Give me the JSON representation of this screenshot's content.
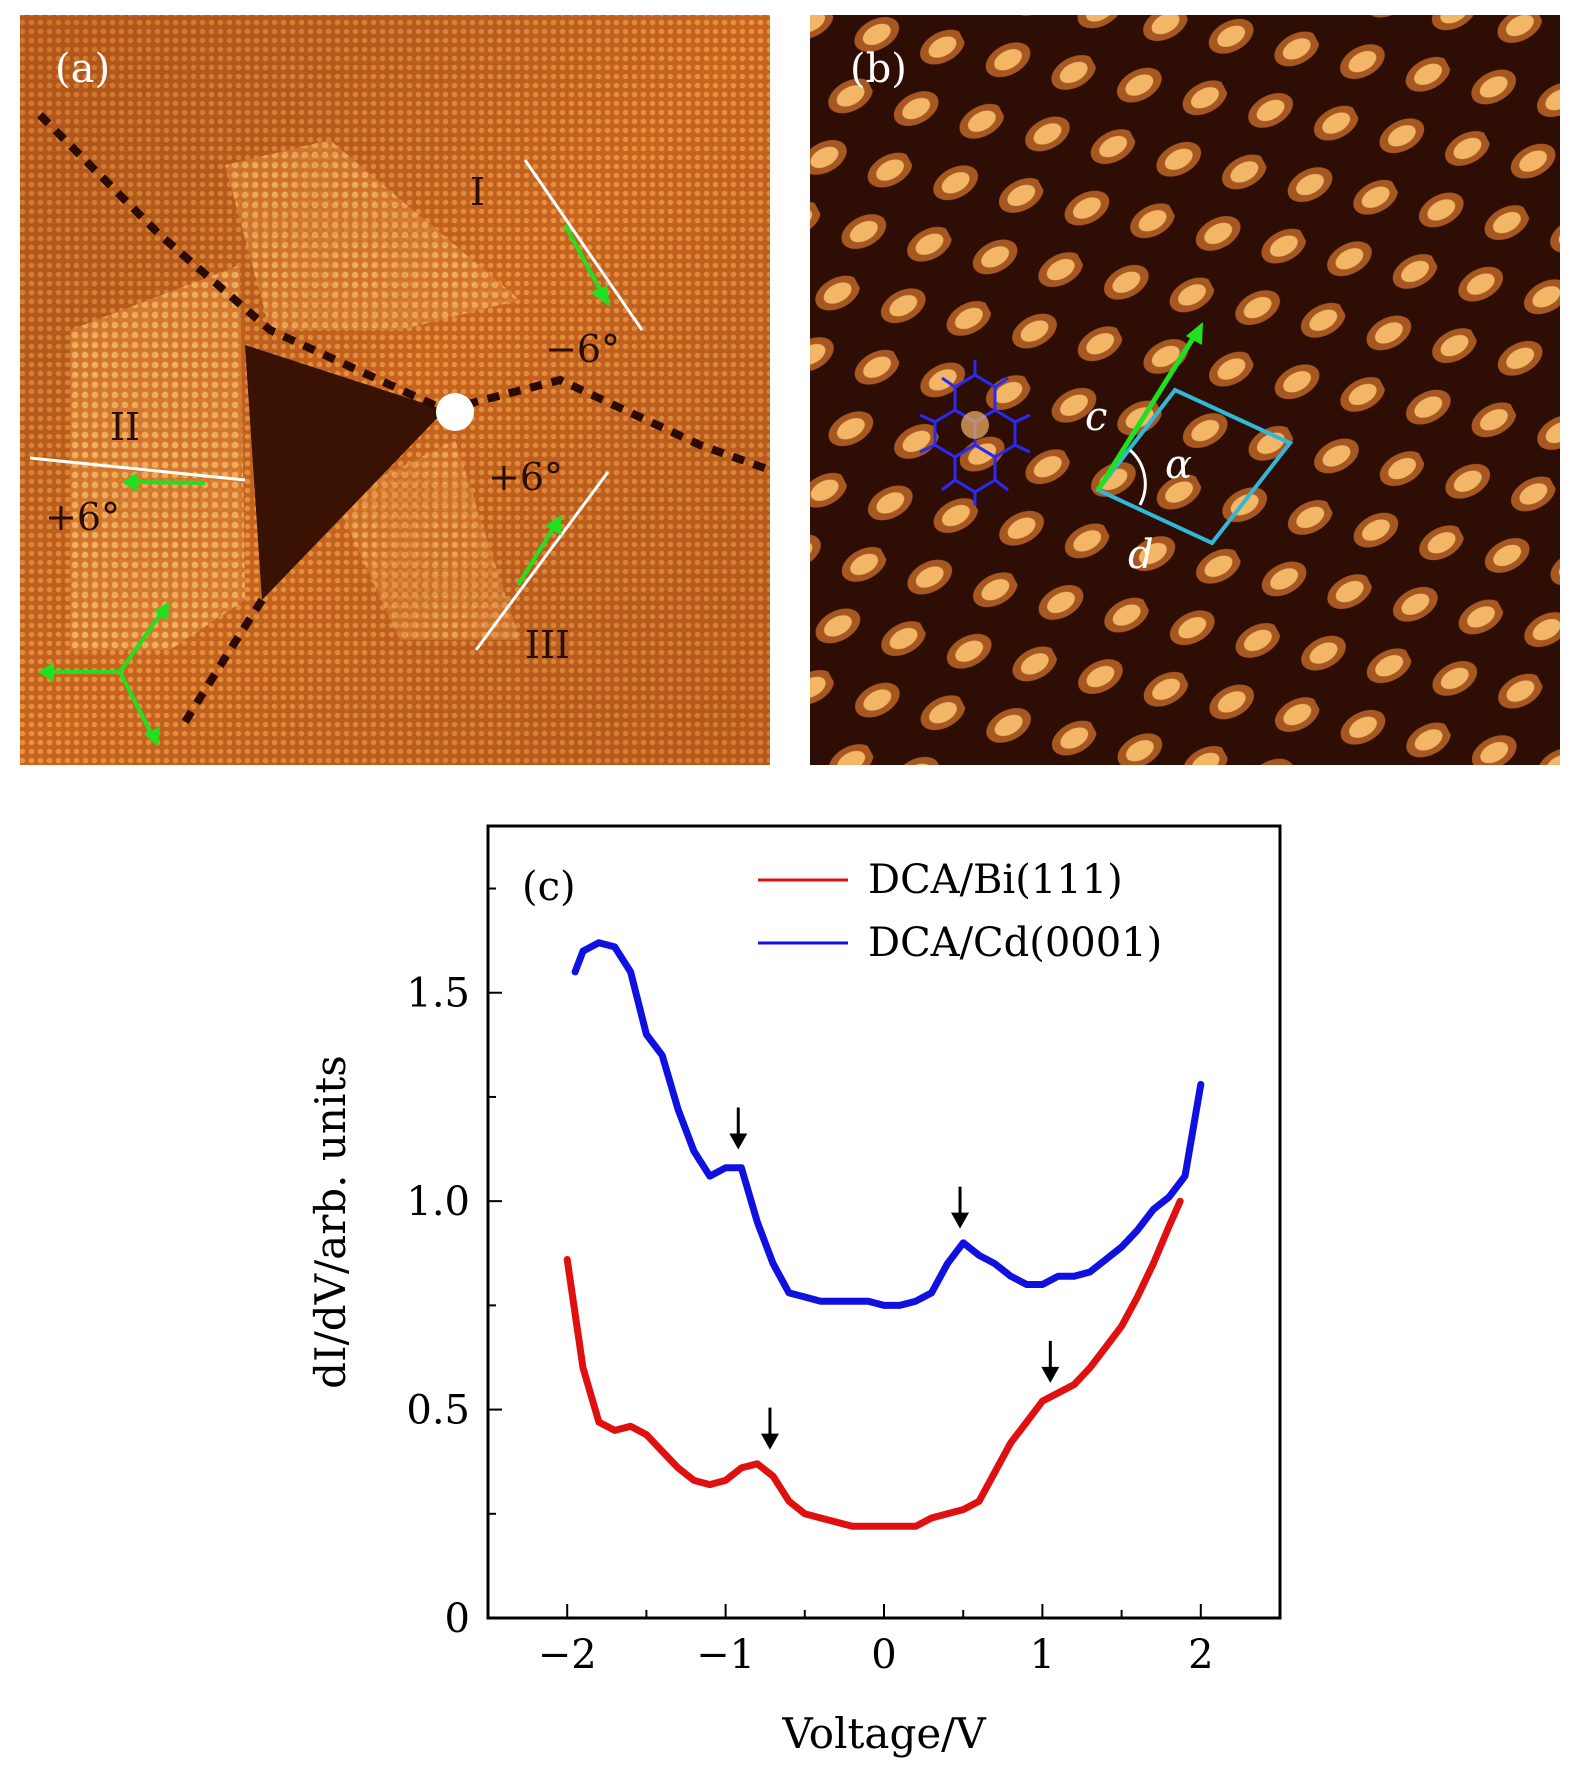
{
  "panel_a": {
    "label": "(a)",
    "domains": [
      "I",
      "II",
      "III"
    ],
    "angles": [
      "−6°",
      "+6°",
      "+6°"
    ]
  },
  "panel_b": {
    "label": "(b)",
    "cell_labels": {
      "c": "c",
      "d": "d",
      "alpha": "α"
    }
  },
  "colors": {
    "stm_orange": "#c8601e",
    "stm_light": "#f0b060",
    "stm_dark": "#2a0c05",
    "arrow_green": "#20e020",
    "cell_cyan": "#30b8d8",
    "bi_red": "#e01010",
    "cd_blue": "#1010e0"
  },
  "chart_data": {
    "type": "line",
    "panel_label": "(c)",
    "xlabel": "Voltage/V",
    "ylabel": "dI/dV/arb. units",
    "xlim": [
      -2.5,
      2.5
    ],
    "ylim": [
      0,
      1.9
    ],
    "xticks": [
      -2,
      -1,
      0,
      1,
      2
    ],
    "xtick_labels": [
      "−2",
      "−1",
      "0",
      "1",
      "2"
    ],
    "yticks": [
      0,
      0.5,
      1.0,
      1.5
    ],
    "ytick_labels": [
      "0",
      "0.5",
      "1.0",
      "1.5"
    ],
    "legend_position": "top-right",
    "series": [
      {
        "name": "DCA/Bi(111)",
        "color": "#e01010",
        "x": [
          -2.0,
          -1.9,
          -1.8,
          -1.7,
          -1.6,
          -1.5,
          -1.4,
          -1.3,
          -1.2,
          -1.1,
          -1.0,
          -0.9,
          -0.8,
          -0.7,
          -0.6,
          -0.5,
          -0.4,
          -0.3,
          -0.2,
          -0.1,
          0.0,
          0.1,
          0.2,
          0.3,
          0.4,
          0.5,
          0.6,
          0.7,
          0.8,
          0.9,
          1.0,
          1.1,
          1.2,
          1.3,
          1.4,
          1.5,
          1.6,
          1.7,
          1.8,
          1.87
        ],
        "y": [
          0.86,
          0.6,
          0.47,
          0.45,
          0.46,
          0.44,
          0.4,
          0.36,
          0.33,
          0.32,
          0.33,
          0.36,
          0.37,
          0.34,
          0.28,
          0.25,
          0.24,
          0.23,
          0.22,
          0.22,
          0.22,
          0.22,
          0.22,
          0.24,
          0.25,
          0.26,
          0.28,
          0.35,
          0.42,
          0.47,
          0.52,
          0.54,
          0.56,
          0.6,
          0.65,
          0.7,
          0.77,
          0.85,
          0.94,
          1.0
        ]
      },
      {
        "name": "DCA/Cd(0001)",
        "color": "#1010e0",
        "x": [
          -1.95,
          -1.9,
          -1.8,
          -1.7,
          -1.6,
          -1.5,
          -1.4,
          -1.3,
          -1.2,
          -1.1,
          -1.0,
          -0.9,
          -0.8,
          -0.7,
          -0.6,
          -0.5,
          -0.4,
          -0.3,
          -0.2,
          -0.1,
          0.0,
          0.1,
          0.2,
          0.3,
          0.4,
          0.5,
          0.6,
          0.7,
          0.8,
          0.9,
          1.0,
          1.1,
          1.2,
          1.3,
          1.4,
          1.5,
          1.6,
          1.7,
          1.8,
          1.9,
          2.0
        ],
        "y": [
          1.55,
          1.6,
          1.62,
          1.61,
          1.55,
          1.4,
          1.35,
          1.22,
          1.12,
          1.06,
          1.08,
          1.08,
          0.95,
          0.85,
          0.78,
          0.77,
          0.76,
          0.76,
          0.76,
          0.76,
          0.75,
          0.75,
          0.76,
          0.78,
          0.85,
          0.9,
          0.87,
          0.85,
          0.82,
          0.8,
          0.8,
          0.82,
          0.82,
          0.83,
          0.86,
          0.89,
          0.93,
          0.98,
          1.01,
          1.06,
          1.28
        ]
      }
    ],
    "annotations": [
      {
        "type": "arrow-down",
        "x": -0.92,
        "y": 1.1,
        "series": "DCA/Cd(0001)"
      },
      {
        "type": "arrow-down",
        "x": 0.48,
        "y": 0.91,
        "series": "DCA/Cd(0001)"
      },
      {
        "type": "arrow-down",
        "x": -0.72,
        "y": 0.38,
        "series": "DCA/Bi(111)"
      },
      {
        "type": "arrow-down",
        "x": 1.05,
        "y": 0.54,
        "series": "DCA/Bi(111)"
      }
    ]
  }
}
